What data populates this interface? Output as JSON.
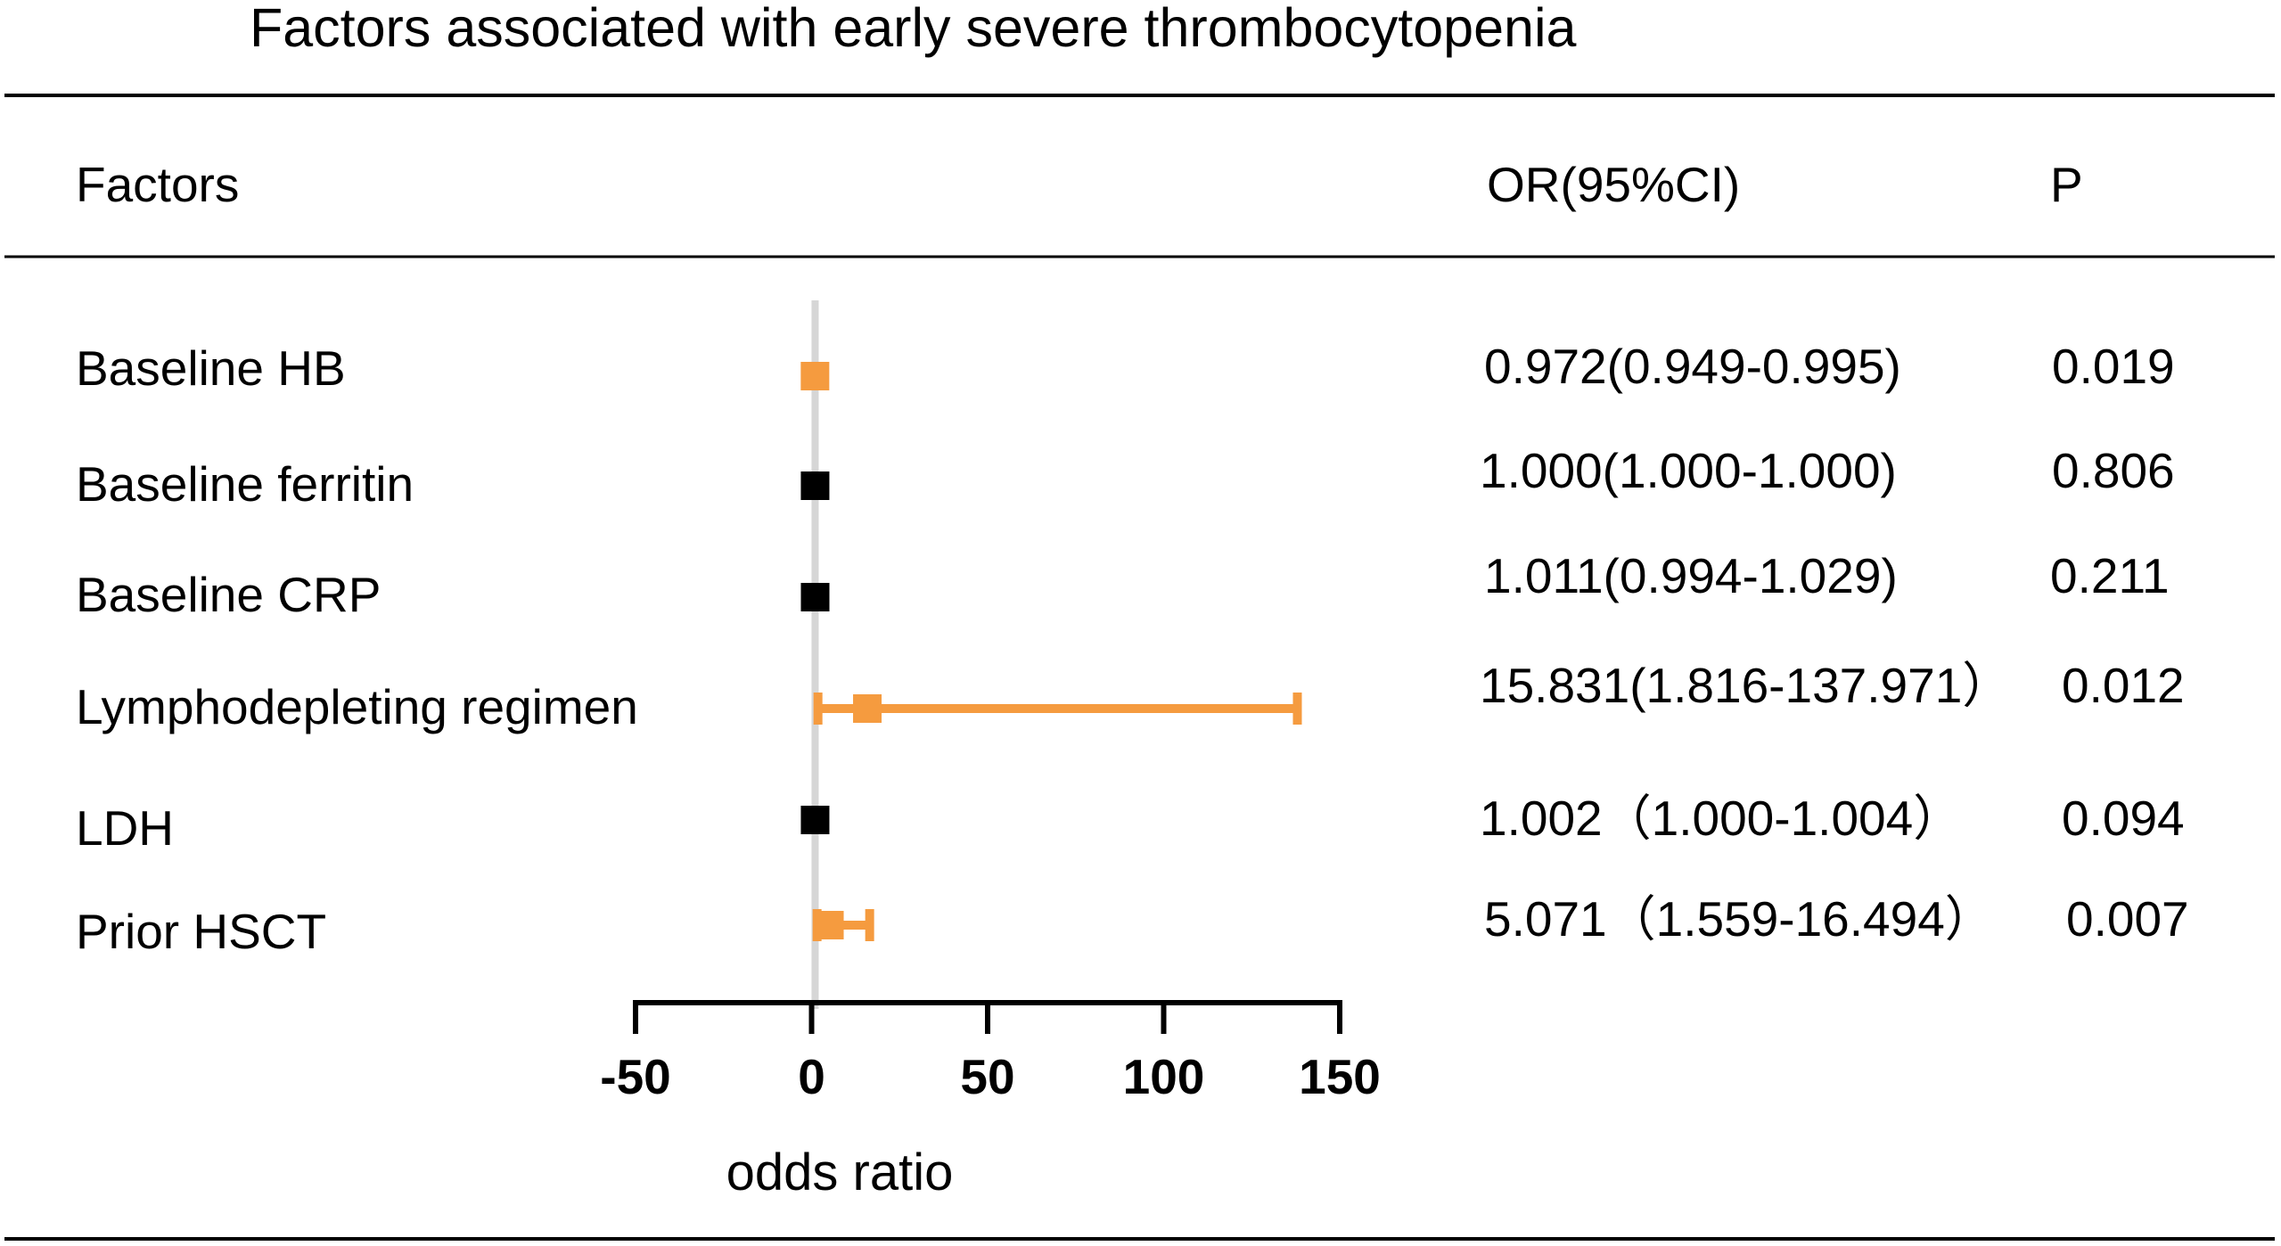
{
  "chart_data": {
    "type": "forest",
    "title": "Factors associated with early severe thrombocytopenia",
    "columns": {
      "factor_header": "Factors",
      "or_header": "OR(95%CI)",
      "p_header": "P"
    },
    "xlabel": "odds ratio",
    "xlim": [
      -50,
      150
    ],
    "xticks": [
      -50,
      0,
      50,
      100,
      150
    ],
    "xtick_labels": [
      "-50",
      "0",
      "50",
      "100",
      "150"
    ],
    "reference_line": 1,
    "colors": {
      "significant": "#F59B3F",
      "not_significant": "#000000",
      "reference_line": "#D6D6D6"
    },
    "rows": [
      {
        "factor": "Baseline HB",
        "or": 0.972,
        "lower": 0.949,
        "upper": 0.995,
        "or_text": "0.972(0.949-0.995)",
        "p": "0.019",
        "significant": true
      },
      {
        "factor": "Baseline ferritin",
        "or": 1.0,
        "lower": 1.0,
        "upper": 1.0,
        "or_text": "1.000(1.000-1.000)",
        "p": "0.806",
        "significant": false
      },
      {
        "factor": "Baseline CRP",
        "or": 1.011,
        "lower": 0.994,
        "upper": 1.029,
        "or_text": "1.011(0.994-1.029)",
        "p": "0.211",
        "significant": false
      },
      {
        "factor": "Lymphodepleting regimen",
        "or": 15.831,
        "lower": 1.816,
        "upper": 137.971,
        "or_text": "15.831(1.816-137.971）",
        "p": "0.012",
        "significant": true
      },
      {
        "factor": "LDH",
        "or": 1.002,
        "lower": 1.0,
        "upper": 1.004,
        "or_text": "1.002（1.000-1.004）",
        "p": "0.094",
        "significant": false
      },
      {
        "factor": "Prior HSCT",
        "or": 5.071,
        "lower": 1.559,
        "upper": 16.494,
        "or_text": "5.071（1.559-16.494）",
        "p": "0.007",
        "significant": true
      }
    ]
  }
}
